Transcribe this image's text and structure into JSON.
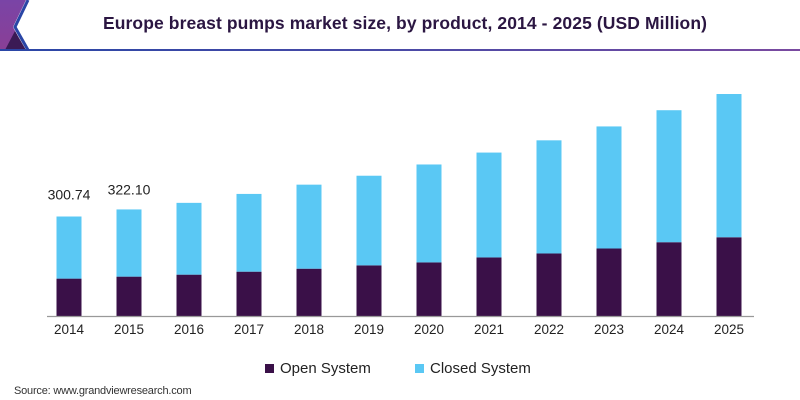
{
  "header": {
    "title": "Europe breast pumps market size, by product, 2014 - 2025 (USD Million)"
  },
  "colors": {
    "open_system": "#3a1048",
    "closed_system": "#5ac8f4",
    "accent_blue": "#2a46a6",
    "accent_purple": "#7a4aa0"
  },
  "chart_data": {
    "type": "bar",
    "stacked": true,
    "title": "Europe breast pumps market size, by product, 2014 - 2025 (USD Million)",
    "xlabel": "",
    "ylabel": "",
    "categories": [
      "2014",
      "2015",
      "2016",
      "2017",
      "2018",
      "2019",
      "2020",
      "2021",
      "2022",
      "2023",
      "2024",
      "2025"
    ],
    "series": [
      {
        "name": "Open System",
        "color": "#3a1048",
        "values": [
          113,
          119,
          125,
          134,
          143,
          153,
          162,
          177,
          189,
          204,
          223,
          238
        ]
      },
      {
        "name": "Closed System",
        "color": "#5ac8f4",
        "values": [
          187.74,
          203.1,
          217,
          235,
          254,
          271,
          296,
          317,
          342,
          369,
          399,
          433
        ]
      }
    ],
    "totals": [
      300.74,
      322.1,
      342,
      369,
      397,
      424,
      458,
      494,
      531,
      573,
      622,
      671
    ],
    "data_labels": [
      {
        "category": "2014",
        "text": "300.74"
      },
      {
        "category": "2015",
        "text": "322.10"
      }
    ],
    "ylim": [
      0,
      700
    ],
    "y_axis_visible": false,
    "grid": false,
    "legend": {
      "position": "bottom",
      "entries": [
        "Open System",
        "Closed System"
      ]
    }
  },
  "legend": {
    "items": [
      {
        "label": "Open System"
      },
      {
        "label": "Closed System"
      }
    ]
  },
  "footer": {
    "source": "Source: www.grandviewresearch.com"
  }
}
